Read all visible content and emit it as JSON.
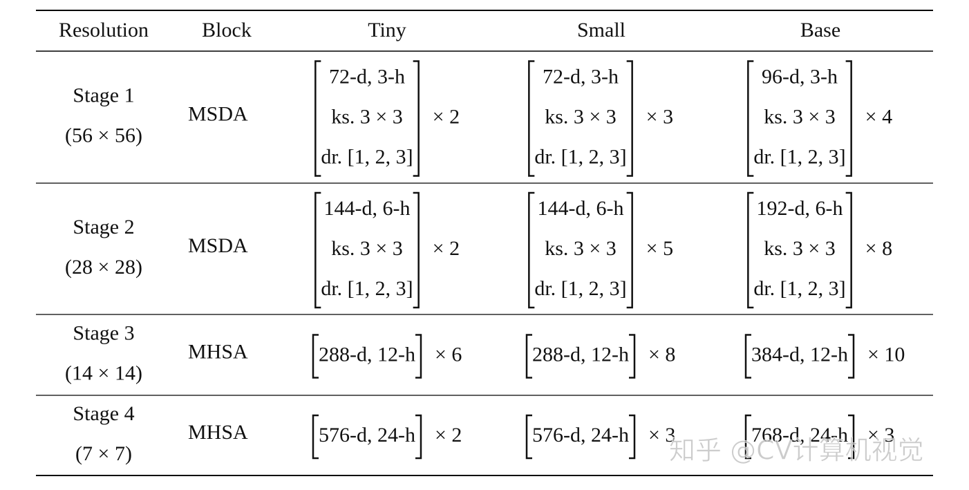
{
  "table": {
    "header": [
      "Resolution",
      "Block",
      "Tiny",
      "Small",
      "Base"
    ],
    "rows": [
      {
        "resolution": [
          "Stage 1",
          "(56 × 56)"
        ],
        "block": "MSDA",
        "configs": [
          {
            "lines": [
              "72-d, 3-h",
              "ks. 3 × 3",
              "dr. [1, 2, 3]"
            ],
            "repeat": "× 2"
          },
          {
            "lines": [
              "72-d, 3-h",
              "ks. 3 × 3",
              "dr. [1, 2, 3]"
            ],
            "repeat": "× 3"
          },
          {
            "lines": [
              "96-d, 3-h",
              "ks. 3 × 3",
              "dr. [1, 2, 3]"
            ],
            "repeat": "× 4"
          }
        ]
      },
      {
        "resolution": [
          "Stage 2",
          "(28 × 28)"
        ],
        "block": "MSDA",
        "configs": [
          {
            "lines": [
              "144-d, 6-h",
              "ks. 3 × 3",
              "dr. [1, 2, 3]"
            ],
            "repeat": "× 2"
          },
          {
            "lines": [
              "144-d, 6-h",
              "ks. 3 × 3",
              "dr. [1, 2, 3]"
            ],
            "repeat": "× 5"
          },
          {
            "lines": [
              "192-d, 6-h",
              "ks. 3 × 3",
              "dr. [1, 2, 3]"
            ],
            "repeat": "× 8"
          }
        ]
      },
      {
        "resolution": [
          "Stage 3",
          "(14 × 14)"
        ],
        "block": "MHSA",
        "configs": [
          {
            "lines": [
              "288-d, 12-h"
            ],
            "repeat": "× 6"
          },
          {
            "lines": [
              "288-d, 12-h"
            ],
            "repeat": "× 8"
          },
          {
            "lines": [
              "384-d, 12-h"
            ],
            "repeat": "× 10"
          }
        ]
      },
      {
        "resolution": [
          "Stage 4",
          "(7 × 7)"
        ],
        "block": "MHSA",
        "configs": [
          {
            "lines": [
              "576-d, 24-h"
            ],
            "repeat": "× 2"
          },
          {
            "lines": [
              "576-d, 24-h"
            ],
            "repeat": "× 3"
          },
          {
            "lines": [
              "768-d, 24-h"
            ],
            "repeat": "× 3"
          }
        ]
      }
    ]
  },
  "watermark": "知乎 @CV计算机视觉"
}
